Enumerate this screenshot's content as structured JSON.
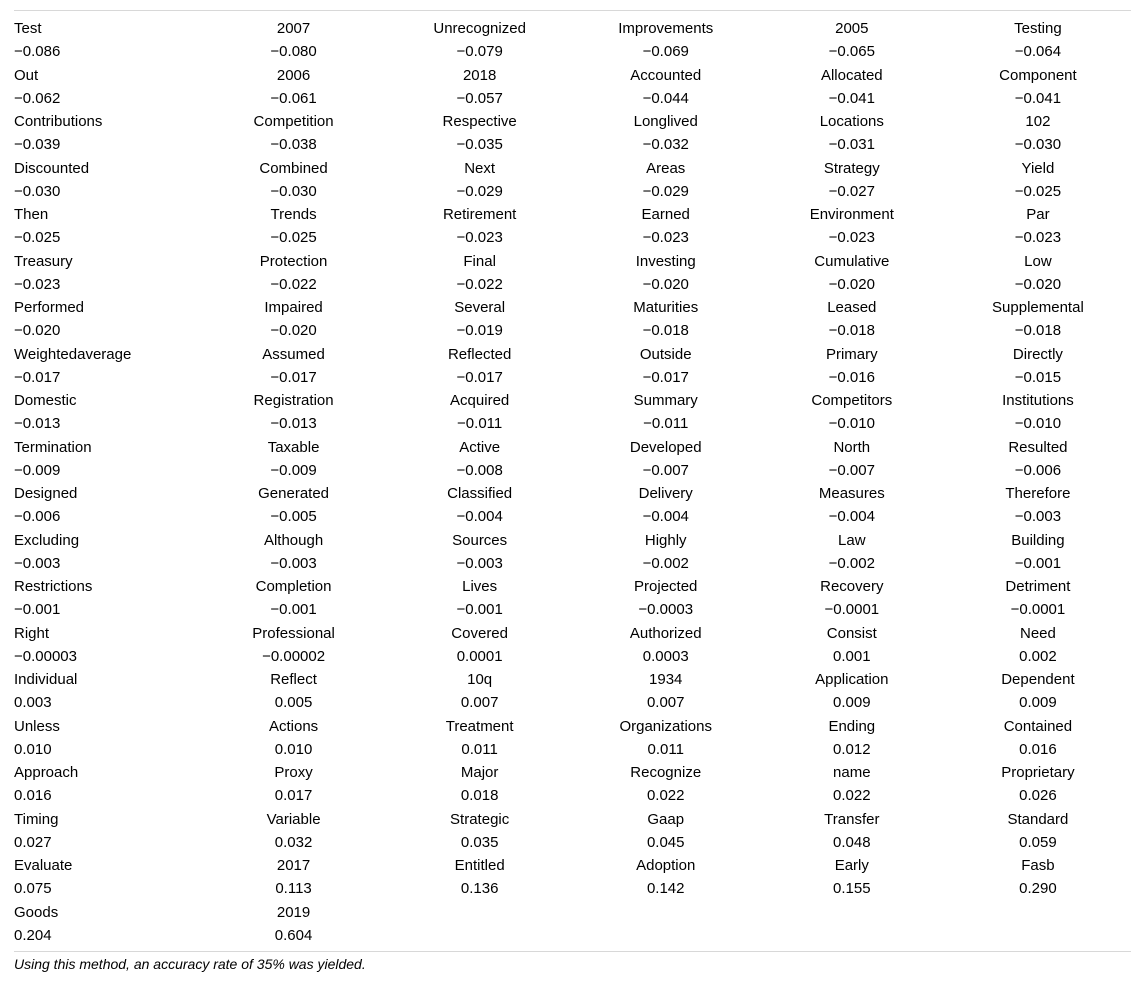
{
  "table": {
    "columns": 6,
    "rows": [
      [
        "Test",
        "2007",
        "Unrecognized",
        "Improvements",
        "2005",
        "Testing"
      ],
      [
        "−0.086",
        "−0.080",
        "−0.079",
        "−0.069",
        "−0.065",
        "−0.064"
      ],
      [
        "Out",
        "2006",
        "2018",
        "Accounted",
        "Allocated",
        "Component"
      ],
      [
        "−0.062",
        "−0.061",
        "−0.057",
        "−0.044",
        "−0.041",
        "−0.041"
      ],
      [
        "Contributions",
        "Competition",
        "Respective",
        "Longlived",
        "Locations",
        "102"
      ],
      [
        "−0.039",
        "−0.038",
        "−0.035",
        "−0.032",
        "−0.031",
        "−0.030"
      ],
      [
        "Discounted",
        "Combined",
        "Next",
        "Areas",
        "Strategy",
        "Yield"
      ],
      [
        "−0.030",
        "−0.030",
        "−0.029",
        "−0.029",
        "−0.027",
        "−0.025"
      ],
      [
        "Then",
        "Trends",
        "Retirement",
        "Earned",
        "Environment",
        "Par"
      ],
      [
        "−0.025",
        "−0.025",
        "−0.023",
        "−0.023",
        "−0.023",
        "−0.023"
      ],
      [
        "Treasury",
        "Protection",
        "Final",
        "Investing",
        "Cumulative",
        "Low"
      ],
      [
        "−0.023",
        "−0.022",
        "−0.022",
        "−0.020",
        "−0.020",
        "−0.020"
      ],
      [
        "Performed",
        "Impaired",
        "Several",
        "Maturities",
        "Leased",
        "Supplemental"
      ],
      [
        "−0.020",
        "−0.020",
        "−0.019",
        "−0.018",
        "−0.018",
        "−0.018"
      ],
      [
        "Weightedaverage",
        "Assumed",
        "Reflected",
        "Outside",
        "Primary",
        "Directly"
      ],
      [
        "−0.017",
        "−0.017",
        "−0.017",
        "−0.017",
        "−0.016",
        "−0.015"
      ],
      [
        "Domestic",
        "Registration",
        "Acquired",
        "Summary",
        "Competitors",
        "Institutions"
      ],
      [
        "−0.013",
        "−0.013",
        "−0.011",
        "−0.011",
        "−0.010",
        "−0.010"
      ],
      [
        "Termination",
        "Taxable",
        "Active",
        "Developed",
        "North",
        "Resulted"
      ],
      [
        "−0.009",
        "−0.009",
        "−0.008",
        "−0.007",
        "−0.007",
        "−0.006"
      ],
      [
        "Designed",
        "Generated",
        "Classified",
        "Delivery",
        "Measures",
        "Therefore"
      ],
      [
        "−0.006",
        "−0.005",
        "−0.004",
        "−0.004",
        "−0.004",
        "−0.003"
      ],
      [
        "Excluding",
        "Although",
        "Sources",
        "Highly",
        "Law",
        "Building"
      ],
      [
        "−0.003",
        "−0.003",
        "−0.003",
        "−0.002",
        "−0.002",
        "−0.001"
      ],
      [
        "Restrictions",
        "Completion",
        "Lives",
        "Projected",
        "Recovery",
        "Detriment"
      ],
      [
        "−0.001",
        "−0.001",
        "−0.001",
        "−0.0003",
        "−0.0001",
        "−0.0001"
      ],
      [
        "Right",
        "Professional",
        "Covered",
        "Authorized",
        "Consist",
        "Need"
      ],
      [
        "−0.00003",
        "−0.00002",
        "0.0001",
        "0.0003",
        "0.001",
        "0.002"
      ],
      [
        "Individual",
        "Reflect",
        "10q",
        "1934",
        "Application",
        "Dependent"
      ],
      [
        "0.003",
        "0.005",
        "0.007",
        "0.007",
        "0.009",
        "0.009"
      ],
      [
        "Unless",
        "Actions",
        "Treatment",
        "Organizations",
        "Ending",
        "Contained"
      ],
      [
        "0.010",
        "0.010",
        "0.011",
        "0.011",
        "0.012",
        "0.016"
      ],
      [
        "Approach",
        "Proxy",
        "Major",
        "Recognize",
        "name",
        "Proprietary"
      ],
      [
        "0.016",
        "0.017",
        "0.018",
        "0.022",
        "0.022",
        "0.026"
      ],
      [
        "Timing",
        "Variable",
        "Strategic",
        "Gaap",
        "Transfer",
        "Standard"
      ],
      [
        "0.027",
        "0.032",
        "0.035",
        "0.045",
        "0.048",
        "0.059"
      ],
      [
        "Evaluate",
        "2017",
        "Entitled",
        "Adoption",
        "Early",
        "Fasb"
      ],
      [
        "0.075",
        "0.113",
        "0.136",
        "0.142",
        "0.155",
        "0.290"
      ],
      [
        "Goods",
        "2019",
        "",
        "",
        "",
        ""
      ],
      [
        "0.204",
        "0.604",
        "",
        "",
        "",
        ""
      ]
    ],
    "font_size": 15,
    "text_color": "#000000",
    "rule_color": "#d8d8d8",
    "background_color": "#ffffff"
  },
  "caption": "Using this method, an accuracy rate of 35% was yielded."
}
